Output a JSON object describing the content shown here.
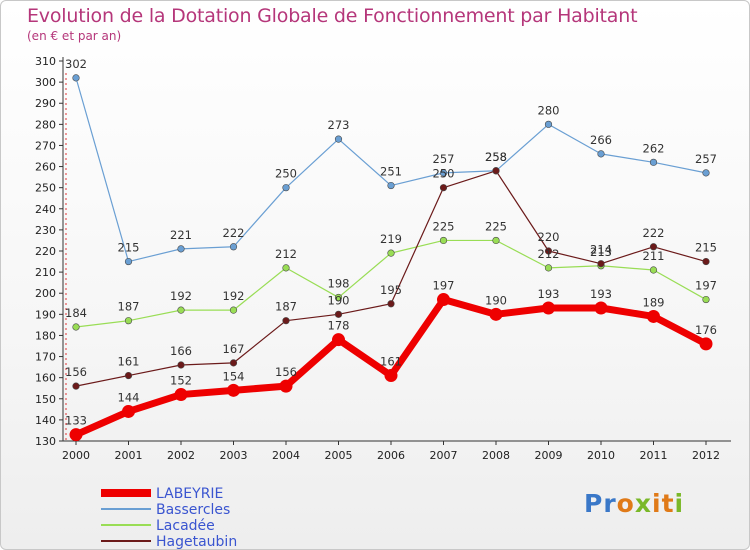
{
  "title": "Evolution de la Dotation Globale de Fonctionnement par Habitant",
  "subtitle": "(en € et par an)",
  "logo": "Proxiti",
  "colors": {
    "title": "#b5367a",
    "LABEYRIE": "#ee0000",
    "Bassercles": "#6a9fd3",
    "Lacadee": "#99dd55",
    "Hagetaubin": "#6b1a1a",
    "legend_text": "#3a55d0"
  },
  "chart_data": {
    "type": "line",
    "title": "Evolution de la Dotation Globale de Fonctionnement par Habitant",
    "subtitle": "(en € et par an)",
    "xlabel": "",
    "ylabel": "",
    "x": [
      "2000",
      "2001",
      "2002",
      "2003",
      "2004",
      "2005",
      "2006",
      "2007",
      "2008",
      "2009",
      "2010",
      "2011",
      "2012"
    ],
    "ylim": [
      130,
      310
    ],
    "yticks": [
      130,
      140,
      150,
      160,
      170,
      180,
      190,
      200,
      210,
      220,
      230,
      240,
      250,
      260,
      270,
      280,
      290,
      300,
      310
    ],
    "grid": false,
    "legend_position": "bottom-left",
    "series": [
      {
        "name": "LABEYRIE",
        "color": "#ee0000",
        "width": 7,
        "values": [
          133,
          144,
          152,
          154,
          156,
          178,
          161,
          197,
          190,
          193,
          193,
          189,
          176
        ],
        "labels": [
          "133",
          "144",
          "152",
          "154",
          "156",
          "178",
          "161",
          "197",
          "190",
          "193",
          "193",
          "189",
          "176"
        ]
      },
      {
        "name": "Bassercles",
        "color": "#6a9fd3",
        "width": 1.2,
        "values": [
          302,
          215,
          221,
          222,
          250,
          273,
          251,
          257,
          258,
          280,
          266,
          262,
          257
        ],
        "labels": [
          "302",
          "215",
          "221",
          "222",
          "250",
          "273",
          "251",
          "257",
          "258",
          "280",
          "266",
          "262",
          "257"
        ]
      },
      {
        "name": "Lacadée",
        "color": "#99dd55",
        "width": 1.2,
        "values": [
          184,
          187,
          192,
          192,
          212,
          198,
          219,
          225,
          225,
          212,
          213,
          211,
          197
        ],
        "labels": [
          "184",
          "187",
          "192",
          "192",
          "212",
          "198",
          "219",
          "225",
          "225",
          "212",
          "213",
          "211",
          "197"
        ]
      },
      {
        "name": "Hagetaubin",
        "color": "#6b1a1a",
        "width": 1.2,
        "values": [
          156,
          161,
          166,
          167,
          187,
          190,
          195,
          250,
          258,
          220,
          214,
          222,
          215
        ],
        "labels": [
          "156",
          "161",
          "166",
          "167",
          "187",
          "190",
          "195",
          "250",
          "258",
          "220",
          "214",
          "222",
          "215"
        ]
      }
    ]
  }
}
